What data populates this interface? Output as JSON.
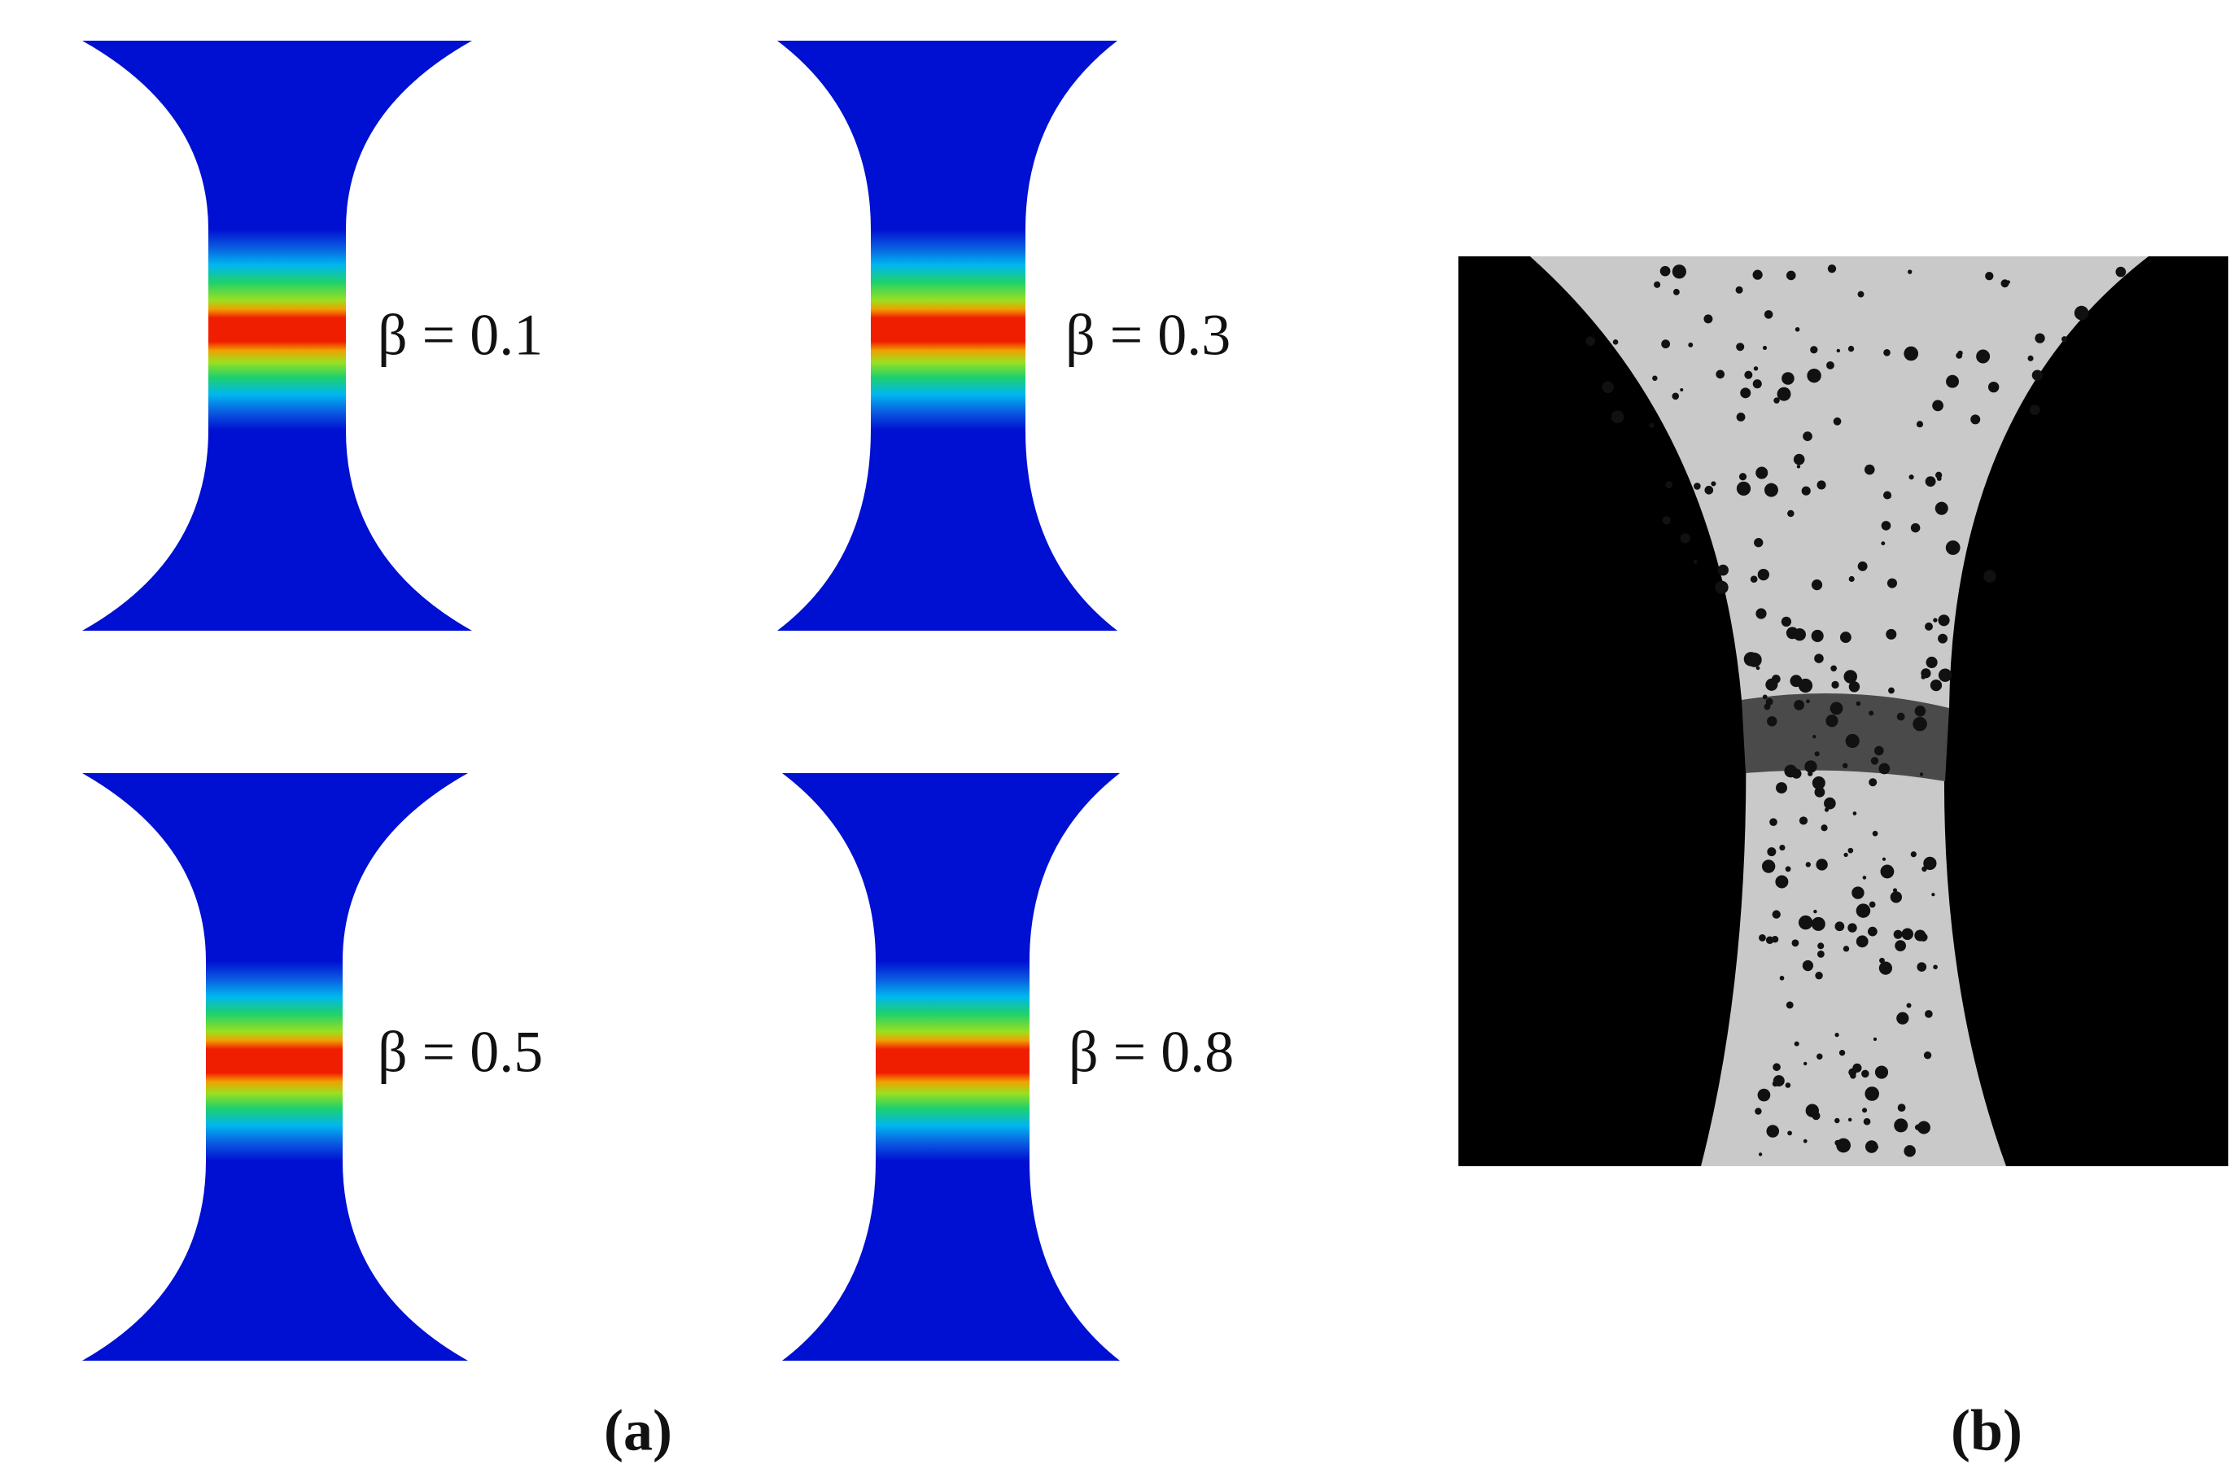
{
  "simulations": [
    {
      "label": "β = 0.1"
    },
    {
      "label": "β = 0.3"
    },
    {
      "label": "β = 0.5"
    },
    {
      "label": "β = 0.8"
    }
  ],
  "captions": {
    "a": "(a)",
    "b": "(b)"
  }
}
